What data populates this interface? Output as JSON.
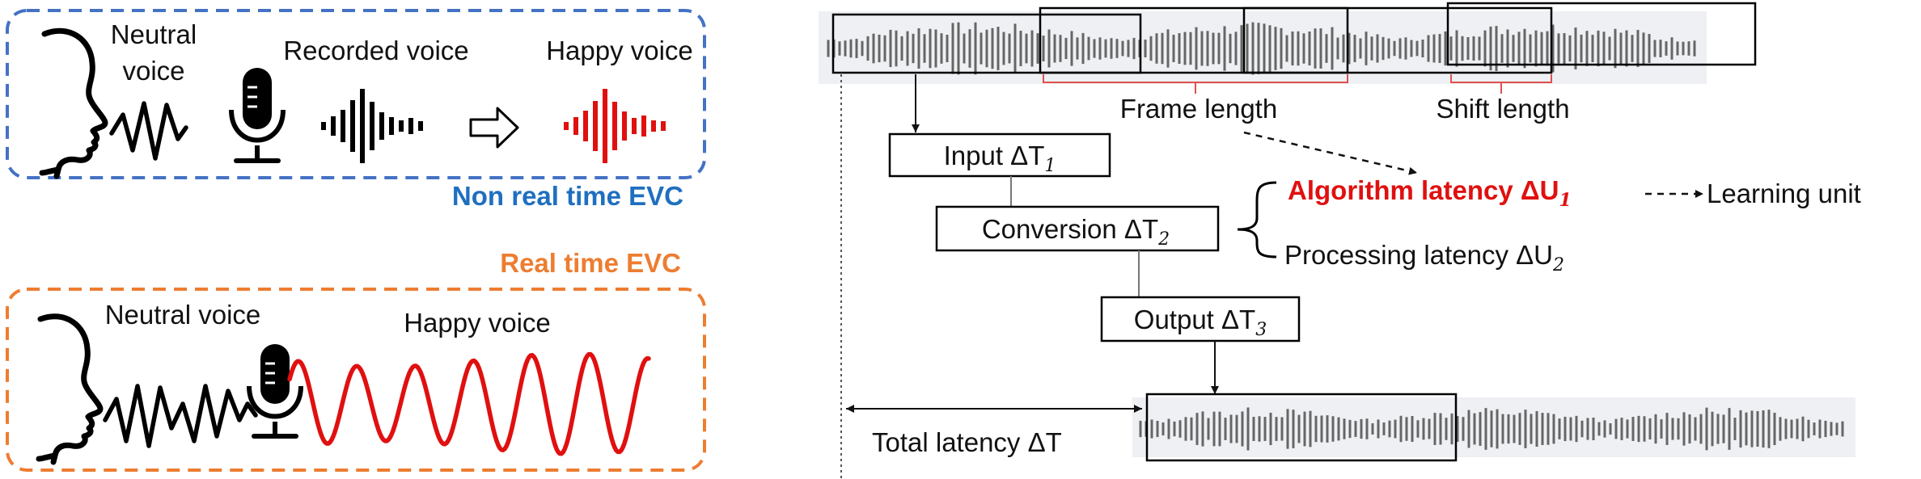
{
  "non_realtime": {
    "neutral_voice_line1": "Neutral",
    "neutral_voice_line2": "voice",
    "recorded_voice": "Recorded voice",
    "happy_voice": "Happy voice",
    "caption": "Non real time EVC",
    "caption_color": "#1f6fc0",
    "frame_color": "#4472c4"
  },
  "realtime": {
    "caption": "Real time EVC",
    "caption_color": "#ed7d31",
    "frame_color": "#ed7d31",
    "neutral_voice": "Neutral voice",
    "happy_voice": "Happy voice"
  },
  "pipeline": {
    "frame_length": "Frame length",
    "shift_length": "Shift length",
    "input_label": "Input ΔT",
    "input_sub": "1",
    "conversion_label": "Conversion ΔT",
    "conversion_sub": "2",
    "output_label": "Output ΔT",
    "output_sub": "3",
    "algorithm_latency": "Algorithm latency ΔU",
    "algorithm_sub": "1",
    "algorithm_color": "#e01010",
    "learning_unit": "Learning unit",
    "processing_latency": "Processing latency ΔU",
    "processing_sub": "2",
    "total_latency": "Total latency ΔT"
  },
  "colors": {
    "happy_wave": "#e01010",
    "neutral_wave": "#000000",
    "waveform_gray": "#666666",
    "waveform_bg": "#f0f2f5"
  }
}
